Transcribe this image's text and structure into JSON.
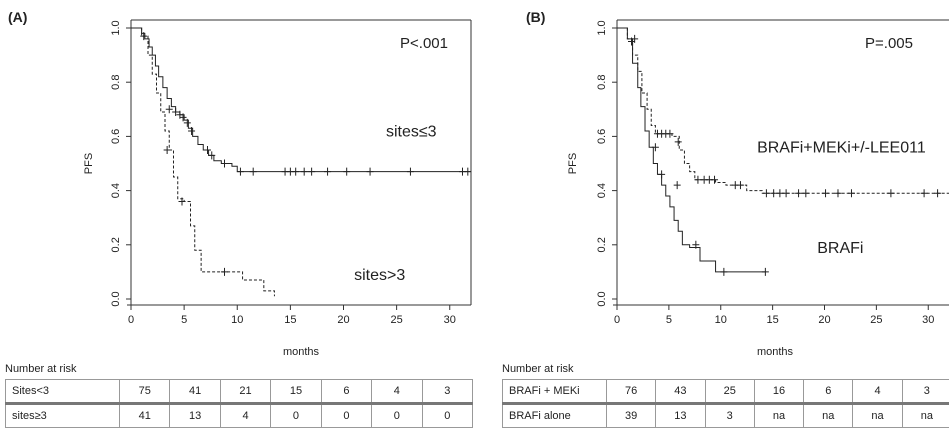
{
  "chart_data": [
    {
      "type": "line",
      "panel_label": "(A)",
      "ylabel": "PFS",
      "xlabel": "months",
      "p_value": "P<.001",
      "xlim": [
        0,
        32
      ],
      "ylim": [
        0,
        1
      ],
      "x_ticks": [
        0,
        5,
        10,
        15,
        20,
        25,
        30
      ],
      "y_ticks": [
        0.0,
        0.2,
        0.4,
        0.6,
        0.8,
        1.0
      ],
      "y_tick_labels": [
        "0.0",
        "0.2",
        "0.4",
        "0.6",
        "0.8",
        "1.0"
      ],
      "series": [
        {
          "name": "sites≤3",
          "style": "solid",
          "label_at": [
            24,
            0.6
          ],
          "steps": [
            [
              0,
              1.0
            ],
            [
              1,
              0.98
            ],
            [
              1.3,
              0.96
            ],
            [
              1.7,
              0.93
            ],
            [
              2,
              0.9
            ],
            [
              2.3,
              0.86
            ],
            [
              2.6,
              0.82
            ],
            [
              3,
              0.78
            ],
            [
              3.4,
              0.74
            ],
            [
              3.8,
              0.71
            ],
            [
              4.2,
              0.69
            ],
            [
              4.6,
              0.68
            ],
            [
              5,
              0.66
            ],
            [
              5.4,
              0.63
            ],
            [
              5.8,
              0.6
            ],
            [
              6.3,
              0.57
            ],
            [
              6.8,
              0.55
            ],
            [
              7.3,
              0.53
            ],
            [
              7.8,
              0.51
            ],
            [
              8.5,
              0.5
            ],
            [
              9.5,
              0.49
            ],
            [
              10,
              0.47
            ],
            [
              32,
              0.47
            ]
          ],
          "censor": [
            [
              1.2,
              0.97
            ],
            [
              3.6,
              0.7
            ],
            [
              4.2,
              0.69
            ],
            [
              4.6,
              0.68
            ],
            [
              4.9,
              0.67
            ],
            [
              5.3,
              0.65
            ],
            [
              5.7,
              0.62
            ],
            [
              7.2,
              0.55
            ],
            [
              7.6,
              0.53
            ],
            [
              8.8,
              0.5
            ],
            [
              10.3,
              0.47
            ],
            [
              11.5,
              0.47
            ],
            [
              14.5,
              0.47
            ],
            [
              15,
              0.47
            ],
            [
              15.5,
              0.47
            ],
            [
              16.3,
              0.47
            ],
            [
              17,
              0.47
            ],
            [
              18.5,
              0.47
            ],
            [
              20.3,
              0.47
            ],
            [
              22.5,
              0.47
            ],
            [
              26.3,
              0.47
            ],
            [
              31.2,
              0.47
            ],
            [
              31.7,
              0.47
            ]
          ]
        },
        {
          "name": "sites>3",
          "style": "dashed",
          "label_at": [
            21,
            0.07
          ],
          "steps": [
            [
              0,
              1.0
            ],
            [
              1,
              0.97
            ],
            [
              1.6,
              0.9
            ],
            [
              2,
              0.83
            ],
            [
              2.4,
              0.76
            ],
            [
              2.8,
              0.69
            ],
            [
              3.2,
              0.62
            ],
            [
              3.6,
              0.55
            ],
            [
              4,
              0.45
            ],
            [
              4.4,
              0.37
            ],
            [
              5,
              0.36
            ],
            [
              5.6,
              0.27
            ],
            [
              6,
              0.18
            ],
            [
              6.6,
              0.1
            ],
            [
              9.5,
              0.1
            ],
            [
              10.5,
              0.07
            ],
            [
              12.5,
              0.03
            ],
            [
              13.5,
              0.01
            ]
          ],
          "censor": [
            [
              3.4,
              0.55
            ],
            [
              4.8,
              0.36
            ],
            [
              8.8,
              0.1
            ]
          ]
        }
      ],
      "risk_table": {
        "title": "Number at risk",
        "rows": [
          {
            "label": "Sites<3",
            "values": [
              "75",
              "41",
              "21",
              "15",
              "6",
              "4",
              "3"
            ]
          },
          {
            "label": "sites≥3",
            "values": [
              "41",
              "13",
              "4",
              "0",
              "0",
              "0",
              "0"
            ]
          }
        ]
      }
    },
    {
      "type": "line",
      "panel_label": "(B)",
      "ylabel": "PFS",
      "xlabel": "months",
      "p_value": "P=.005",
      "xlim": [
        0,
        32
      ],
      "ylim": [
        0,
        1
      ],
      "x_ticks": [
        0,
        5,
        10,
        15,
        20,
        25,
        30
      ],
      "y_ticks": [
        0.0,
        0.2,
        0.4,
        0.6,
        0.8,
        1.0
      ],
      "y_tick_labels": [
        "0.0",
        "0.2",
        "0.4",
        "0.6",
        "0.8",
        "1.0"
      ],
      "series": [
        {
          "name": "BRAFi+MEKi+/-LEE011",
          "style": "dashed",
          "label_at": [
            13.5,
            0.54
          ],
          "steps": [
            [
              0,
              1.0
            ],
            [
              1,
              0.96
            ],
            [
              1.5,
              0.9
            ],
            [
              2,
              0.84
            ],
            [
              2.4,
              0.76
            ],
            [
              2.9,
              0.7
            ],
            [
              3.3,
              0.64
            ],
            [
              3.7,
              0.61
            ],
            [
              5.3,
              0.6
            ],
            [
              6,
              0.55
            ],
            [
              6.5,
              0.5
            ],
            [
              7,
              0.47
            ],
            [
              7.5,
              0.44
            ],
            [
              9.5,
              0.43
            ],
            [
              10.5,
              0.42
            ],
            [
              12.5,
              0.4
            ],
            [
              14,
              0.39
            ],
            [
              32,
              0.39
            ]
          ],
          "censor": [
            [
              1.4,
              0.95
            ],
            [
              3.9,
              0.61
            ],
            [
              4.3,
              0.61
            ],
            [
              4.7,
              0.61
            ],
            [
              5.1,
              0.61
            ],
            [
              5.9,
              0.58
            ],
            [
              7.8,
              0.44
            ],
            [
              8.4,
              0.44
            ],
            [
              8.9,
              0.44
            ],
            [
              9.4,
              0.44
            ],
            [
              11.4,
              0.42
            ],
            [
              11.9,
              0.42
            ],
            [
              14.4,
              0.39
            ],
            [
              15.1,
              0.39
            ],
            [
              15.7,
              0.39
            ],
            [
              16.3,
              0.39
            ],
            [
              17.5,
              0.39
            ],
            [
              18.2,
              0.39
            ],
            [
              20.1,
              0.39
            ],
            [
              21.3,
              0.39
            ],
            [
              22.6,
              0.39
            ],
            [
              26.4,
              0.39
            ],
            [
              29.6,
              0.39
            ],
            [
              30.9,
              0.39
            ]
          ]
        },
        {
          "name": "BRAFi",
          "style": "solid",
          "label_at": [
            19.3,
            0.17
          ],
          "steps": [
            [
              0,
              1.0
            ],
            [
              1,
              0.96
            ],
            [
              1.5,
              0.87
            ],
            [
              2,
              0.78
            ],
            [
              2.3,
              0.71
            ],
            [
              2.7,
              0.62
            ],
            [
              3.1,
              0.56
            ],
            [
              3.5,
              0.5
            ],
            [
              3.9,
              0.46
            ],
            [
              4.3,
              0.42
            ],
            [
              4.7,
              0.38
            ],
            [
              5.1,
              0.34
            ],
            [
              5.5,
              0.29
            ],
            [
              5.9,
              0.25
            ],
            [
              6.3,
              0.2
            ],
            [
              7,
              0.19
            ],
            [
              8,
              0.14
            ],
            [
              9.5,
              0.1
            ],
            [
              14.3,
              0.1
            ]
          ],
          "censor": [
            [
              1.7,
              0.96
            ],
            [
              3.7,
              0.56
            ],
            [
              4.3,
              0.46
            ],
            [
              5.8,
              0.42
            ],
            [
              7.6,
              0.2
            ],
            [
              10.3,
              0.1
            ],
            [
              14.3,
              0.1
            ]
          ]
        }
      ],
      "risk_table": {
        "title": "Number at risk",
        "rows": [
          {
            "label": "BRAFi + MEKi",
            "values": [
              "76",
              "43",
              "25",
              "16",
              "6",
              "4",
              "3"
            ]
          },
          {
            "label": "BRAFi alone",
            "values": [
              "39",
              "13",
              "3",
              "na",
              "na",
              "na",
              "na"
            ]
          }
        ]
      }
    }
  ]
}
